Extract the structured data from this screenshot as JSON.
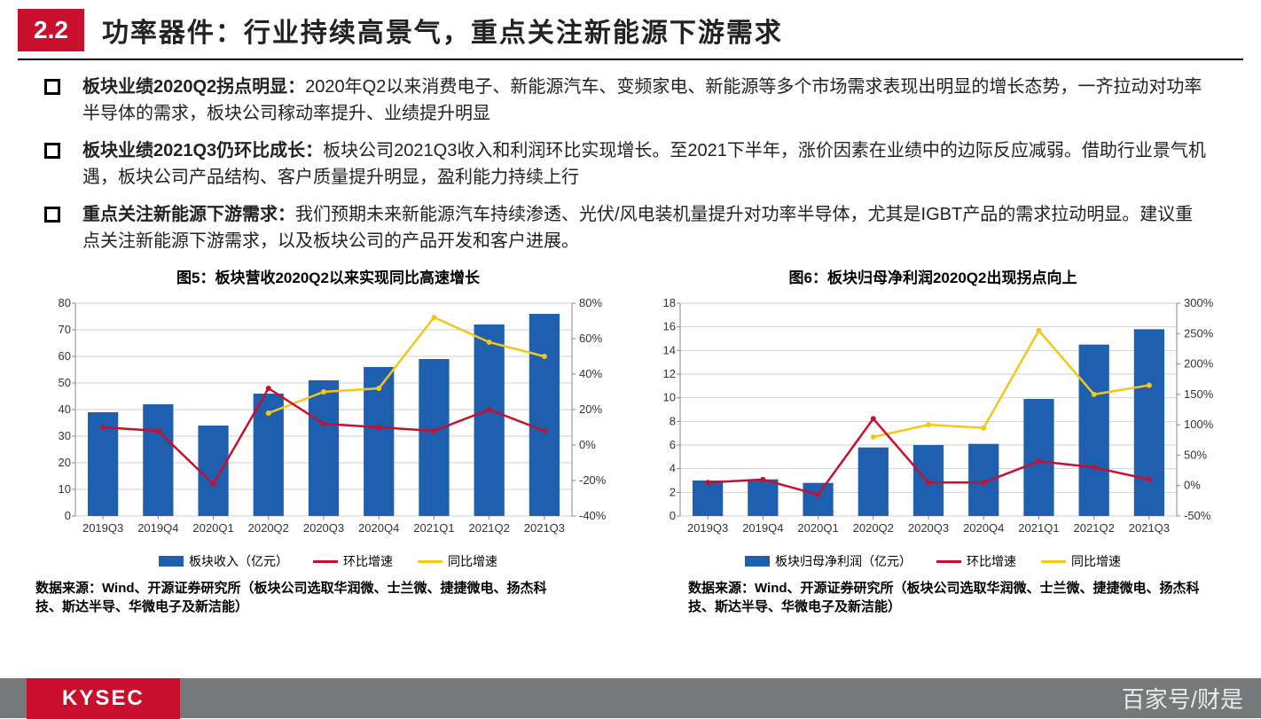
{
  "header": {
    "section_number": "2.2",
    "title": "功率器件：行业持续高景气，重点关注新能源下游需求"
  },
  "bullets": [
    {
      "bold": "板块业绩2020Q2拐点明显：",
      "text": "2020年Q2以来消费电子、新能源汽车、变频家电、新能源等多个市场需求表现出明显的增长态势，一齐拉动对功率半导体的需求，板块公司稼动率提升、业绩提升明显"
    },
    {
      "bold": "板块业绩2021Q3仍环比成长：",
      "text": "板块公司2021Q3收入和利润环比实现增长。至2021下半年，涨价因素在业绩中的边际反应减弱。借助行业景气机遇，板块公司产品结构、客户质量提升明显，盈利能力持续上行"
    },
    {
      "bold": "重点关注新能源下游需求：",
      "text": "我们预期未来新能源汽车持续渗透、光伏/风电装机量提升对功率半导体，尤其是IGBT产品的需求拉动明显。建议重点关注新能源下游需求，以及板块公司的产品开发和客户进展。"
    }
  ],
  "chart5": {
    "title": "图5：板块营收2020Q2以来实现同比高速增长",
    "type": "combo",
    "categories": [
      "2019Q3",
      "2019Q4",
      "2020Q1",
      "2020Q2",
      "2020Q3",
      "2020Q4",
      "2021Q1",
      "2021Q2",
      "2021Q3"
    ],
    "bars": {
      "label": "板块收入（亿元）",
      "values": [
        39,
        42,
        34,
        46,
        51,
        56,
        59,
        72,
        76
      ],
      "color": "#1f5fb0"
    },
    "line1": {
      "label": "环比增速",
      "values": [
        10,
        8,
        -22,
        32,
        12,
        10,
        8,
        20,
        8
      ],
      "color": "#c8102e"
    },
    "line2": {
      "label": "同比增速",
      "values": [
        null,
        null,
        null,
        18,
        30,
        32,
        72,
        58,
        50
      ],
      "color": "#f5c518"
    },
    "y_left": {
      "min": 0,
      "max": 80,
      "step": 10
    },
    "y_right": {
      "min": -40,
      "max": 80,
      "step": 20,
      "suffix": "%"
    },
    "background": "#ffffff",
    "grid_color": "#bfbfbf",
    "font_size": 13
  },
  "chart6": {
    "title": "图6：板块归母净利润2020Q2出现拐点向上",
    "type": "combo",
    "categories": [
      "2019Q3",
      "2019Q4",
      "2020Q1",
      "2020Q2",
      "2020Q3",
      "2020Q4",
      "2021Q1",
      "2021Q2",
      "2021Q3"
    ],
    "bars": {
      "label": "板块归母净利润（亿元）",
      "values": [
        3.0,
        3.1,
        2.8,
        5.8,
        6.0,
        6.1,
        9.9,
        14.5,
        15.8
      ],
      "color": "#1f5fb0"
    },
    "line1": {
      "label": "环比增速",
      "values": [
        5,
        10,
        -15,
        110,
        5,
        5,
        40,
        30,
        10
      ],
      "color": "#c8102e"
    },
    "line2": {
      "label": "同比增速",
      "values": [
        null,
        null,
        null,
        80,
        100,
        95,
        255,
        150,
        165
      ],
      "color": "#f5c518"
    },
    "y_left": {
      "min": 0,
      "max": 18,
      "step": 2
    },
    "y_right": {
      "min": -50,
      "max": 300,
      "step": 50,
      "suffix": "%"
    },
    "background": "#ffffff",
    "grid_color": "#bfbfbf",
    "font_size": 13
  },
  "source_text": "数据来源：Wind、开源证券研究所（板块公司选取华润微、士兰微、捷捷微电、扬杰科技、斯达半导、华微电子及新洁能）",
  "footer": {
    "brand": "KYSEC",
    "watermark": "百家号/财是"
  },
  "colors": {
    "accent": "#c8102e",
    "bar": "#1f5fb0",
    "line_yellow": "#f5c518",
    "footer_bg": "#76797a"
  }
}
